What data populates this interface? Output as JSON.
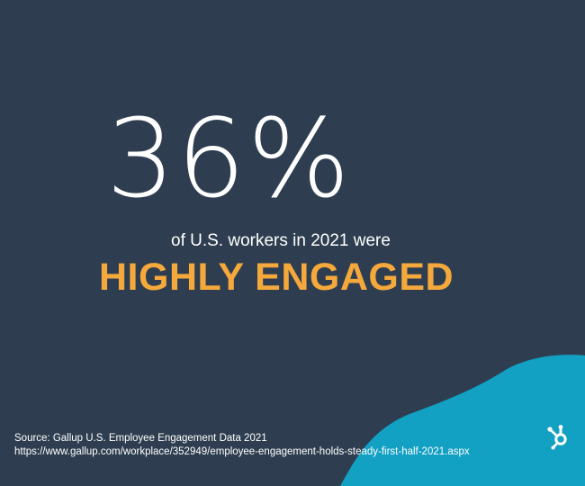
{
  "stat": {
    "value": "36%"
  },
  "subtitle": "of U.S. workers in 2021 were",
  "headline": "HIGHLY ENGAGED",
  "source": {
    "line1": "Source: Gallup U.S. Employee Engagement Data 2021",
    "url": "https://www.gallup.com/workplace/352949/employee-engagement-holds-steady-first-half-2021.aspx"
  },
  "colors": {
    "background": "#2e3e50",
    "accent_orange": "#f5a83b",
    "accent_teal": "#12a0c3",
    "text": "#ffffff"
  },
  "icons": {
    "brand": "hubspot-sprocket-icon"
  }
}
